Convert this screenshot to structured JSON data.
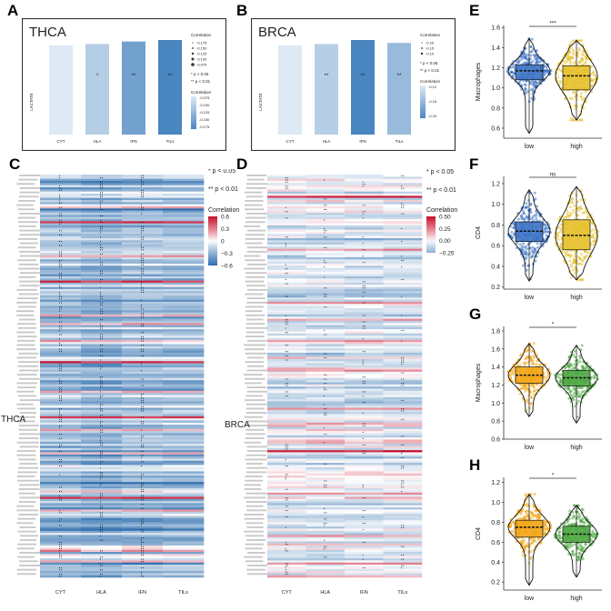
{
  "panels": {
    "A": "A",
    "B": "B",
    "C": "C",
    "D": "D",
    "E": "E",
    "F": "F",
    "G": "G",
    "H": "H"
  },
  "chart_data": [
    {
      "panel": "A",
      "type": "heatmap",
      "title": "THCA",
      "ylabel": "LACTATE",
      "categories": [
        "CYT",
        "HLA",
        "IFN",
        "TILs"
      ],
      "values": [
        -0.06,
        -0.09,
        -0.14,
        -0.17
      ],
      "significance": [
        "",
        "*",
        "**",
        "**"
      ],
      "legend_sig_title": "Correlation",
      "legend_sig_labels": [
        "-0.175",
        "-0.150",
        "-0.125",
        "-0.100",
        "-0.075"
      ],
      "legend_color_title": "Correlation",
      "legend_color_labels": [
        "-0.075",
        "-0.100",
        "-0.125",
        "-0.150",
        "-0.175"
      ],
      "p_labels": [
        "* p < 0.05",
        "** p < 0.01"
      ],
      "color_low": "#dde9f4",
      "color_high": "#4a86c0"
    },
    {
      "panel": "B",
      "type": "heatmap",
      "title": "BRCA",
      "ylabel": "LACTATE",
      "categories": [
        "CYT",
        "HLA",
        "IFN",
        "TILs"
      ],
      "values": [
        -0.12,
        -0.16,
        -0.27,
        -0.19
      ],
      "significance": [
        "",
        "**",
        "**",
        "**"
      ],
      "legend_sig_title": "Correlation",
      "legend_sig_labels": [
        "-0.20",
        "-0.15",
        "-0.10"
      ],
      "legend_color_title": "Correlation",
      "legend_color_labels": [
        "-0.12",
        "-0.16",
        "-0.20"
      ],
      "p_labels": [
        "* p < 0.05",
        "** p < 0.01"
      ],
      "color_low": "#dde9f4",
      "color_high": "#4a86c0"
    },
    {
      "panel": "C",
      "type": "heatmap",
      "ylabel": "THCA",
      "categories": [
        "CYT",
        "HLA",
        "IFN",
        "TILs"
      ],
      "n_rows": 190,
      "strong_positive_rows": [
        22,
        50,
        88,
        114,
        152
      ],
      "mild_positive_rows": [
        15,
        38,
        66,
        70,
        102,
        120,
        131,
        158,
        177,
        182
      ],
      "p_labels": [
        "* p < 0.05",
        "** p < 0.01"
      ],
      "legend_title": "Correlation",
      "legend_ticks": [
        0.6,
        0.3,
        0.0,
        -0.3,
        -0.6
      ],
      "legend_labels": [
        "0.6",
        "0.3",
        "0",
        "−0.3",
        "−0.6"
      ]
    },
    {
      "panel": "D",
      "type": "heatmap",
      "ylabel": "BRCA",
      "categories": [
        "CYT",
        "HLA",
        "IFN",
        "TILs"
      ],
      "n_rows": 190,
      "strong_positive_rows": [
        10,
        130
      ],
      "mild_positive_rows": [
        35,
        60,
        78,
        92,
        110,
        150,
        170,
        183
      ],
      "p_labels": [
        "* p < 0.05",
        "** p < 0.01"
      ],
      "legend_title": "Correlation",
      "legend_ticks": [
        0.5,
        0.25,
        0.0,
        -0.25
      ],
      "legend_labels": [
        "0.50",
        "0.25",
        "0.00",
        "−0.25"
      ]
    },
    {
      "panel": "E",
      "type": "violin_box",
      "ylabel": "Macrophages",
      "groups": [
        "low",
        "high"
      ],
      "colors": [
        "#3d73c4",
        "#e6c02a"
      ],
      "ylim": [
        0.5,
        1.62
      ],
      "yticks": [
        0.6,
        0.8,
        1.0,
        1.2,
        1.4,
        1.6
      ],
      "ytick_labels": [
        "0.6",
        "0.8",
        "1.0",
        "1.2",
        "1.4",
        "1.6"
      ],
      "stats": [
        {
          "min": 0.55,
          "q1": 1.08,
          "median": 1.17,
          "q3": 1.23,
          "max": 1.49
        },
        {
          "min": 0.68,
          "q1": 0.98,
          "median": 1.12,
          "q3": 1.22,
          "max": 1.47
        }
      ],
      "significance": "***"
    },
    {
      "panel": "F",
      "type": "violin_box",
      "ylabel": "CD4",
      "groups": [
        "low",
        "high"
      ],
      "colors": [
        "#3d73c4",
        "#e6c02a"
      ],
      "ylim": [
        0.18,
        1.27
      ],
      "yticks": [
        0.2,
        0.4,
        0.6,
        0.8,
        1.0,
        1.2
      ],
      "ytick_labels": [
        "0.2",
        "0.4",
        "0.6",
        "0.8",
        "1.0",
        "1.2"
      ],
      "stats": [
        {
          "min": 0.26,
          "q1": 0.64,
          "median": 0.74,
          "q3": 0.83,
          "max": 1.14
        },
        {
          "min": 0.27,
          "q1": 0.56,
          "median": 0.7,
          "q3": 0.85,
          "max": 1.17
        }
      ],
      "significance": "ns"
    },
    {
      "panel": "G",
      "type": "violin_box",
      "ylabel": "Macrophages",
      "groups": [
        "low",
        "high"
      ],
      "colors": [
        "#f2a516",
        "#4fa844"
      ],
      "ylim": [
        0.6,
        1.85
      ],
      "yticks": [
        0.6,
        0.8,
        1.0,
        1.2,
        1.4,
        1.6,
        1.8
      ],
      "ytick_labels": [
        "0.6",
        "0.8",
        "1.0",
        "1.2",
        "1.4",
        "1.6",
        "1.8"
      ],
      "stats": [
        {
          "min": 0.85,
          "q1": 1.22,
          "median": 1.31,
          "q3": 1.4,
          "max": 1.66
        },
        {
          "min": 0.78,
          "q1": 1.19,
          "median": 1.28,
          "q3": 1.36,
          "max": 1.64
        }
      ],
      "significance": "*"
    },
    {
      "panel": "H",
      "type": "violin_box",
      "ylabel": "CD4",
      "groups": [
        "low",
        "high"
      ],
      "colors": [
        "#f2a516",
        "#4fa844"
      ],
      "ylim": [
        0.12,
        1.25
      ],
      "yticks": [
        0.2,
        0.4,
        0.6,
        0.8,
        1.0,
        1.2
      ],
      "ytick_labels": [
        "0.2",
        "0.4",
        "0.6",
        "0.8",
        "1.0",
        "1.2"
      ],
      "stats": [
        {
          "min": 0.17,
          "q1": 0.65,
          "median": 0.75,
          "q3": 0.82,
          "max": 1.08
        },
        {
          "min": 0.25,
          "q1": 0.6,
          "median": 0.68,
          "q3": 0.76,
          "max": 0.97
        }
      ],
      "significance": "*"
    }
  ]
}
